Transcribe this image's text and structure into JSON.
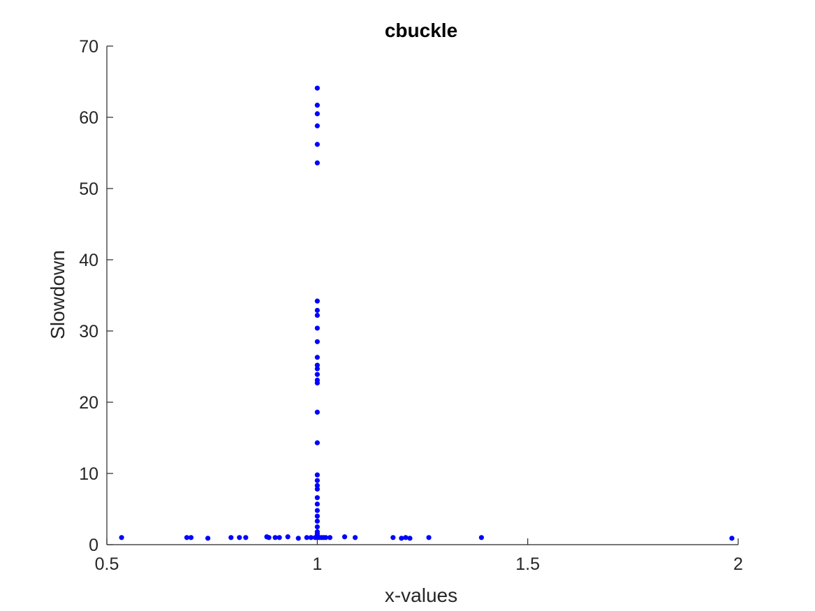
{
  "chart_data": {
    "type": "scatter",
    "title": "cbuckle",
    "xlabel": "x-values",
    "ylabel": "Slowdown",
    "xlim": [
      0.5,
      2
    ],
    "ylim": [
      0,
      70
    ],
    "xticks": [
      0.5,
      1,
      1.5,
      2
    ],
    "xtick_labels": [
      "0.5",
      "1",
      "1.5",
      "2"
    ],
    "yticks": [
      0,
      10,
      20,
      30,
      40,
      50,
      60,
      70
    ],
    "ytick_labels": [
      "0",
      "10",
      "20",
      "30",
      "40",
      "50",
      "60",
      "70"
    ],
    "grid": false,
    "marker_color": "#0000ff",
    "axis_color": "#262626",
    "points": [
      [
        0.535,
        1.0
      ],
      [
        0.69,
        1.0
      ],
      [
        0.7,
        1.0
      ],
      [
        0.74,
        0.9
      ],
      [
        0.795,
        1.0
      ],
      [
        0.815,
        1.0
      ],
      [
        0.83,
        1.0
      ],
      [
        0.88,
        1.1
      ],
      [
        0.885,
        1.0
      ],
      [
        0.9,
        1.0
      ],
      [
        0.91,
        1.0
      ],
      [
        0.93,
        1.1
      ],
      [
        0.955,
        0.9
      ],
      [
        0.975,
        1.0
      ],
      [
        0.985,
        1.0
      ],
      [
        0.995,
        1.0
      ],
      [
        1.0,
        1.0
      ],
      [
        1.0,
        1.2
      ],
      [
        1.0,
        1.5
      ],
      [
        1.0,
        1.8
      ],
      [
        1.0,
        2.5
      ],
      [
        1.0,
        3.3
      ],
      [
        1.0,
        4.0
      ],
      [
        1.0,
        4.8
      ],
      [
        1.0,
        5.7
      ],
      [
        1.0,
        6.6
      ],
      [
        1.0,
        7.8
      ],
      [
        1.0,
        8.3
      ],
      [
        1.0,
        9.0
      ],
      [
        1.0,
        9.8
      ],
      [
        1.0,
        14.3
      ],
      [
        1.0,
        18.6
      ],
      [
        1.0,
        22.7
      ],
      [
        1.0,
        23.1
      ],
      [
        1.0,
        23.9
      ],
      [
        1.0,
        24.7
      ],
      [
        1.0,
        25.2
      ],
      [
        1.0,
        26.3
      ],
      [
        1.0,
        28.5
      ],
      [
        1.0,
        30.4
      ],
      [
        1.0,
        32.2
      ],
      [
        1.0,
        32.9
      ],
      [
        1.0,
        34.2
      ],
      [
        1.0,
        53.6
      ],
      [
        1.0,
        56.2
      ],
      [
        1.0,
        58.8
      ],
      [
        1.0,
        60.5
      ],
      [
        1.0,
        61.7
      ],
      [
        1.0,
        64.1
      ],
      [
        1.005,
        1.0
      ],
      [
        1.01,
        1.0
      ],
      [
        1.015,
        1.0
      ],
      [
        1.02,
        1.0
      ],
      [
        1.03,
        1.0
      ],
      [
        1.065,
        1.1
      ],
      [
        1.09,
        1.0
      ],
      [
        1.18,
        1.0
      ],
      [
        1.2,
        0.9
      ],
      [
        1.21,
        1.0
      ],
      [
        1.22,
        0.9
      ],
      [
        1.265,
        1.0
      ],
      [
        1.39,
        1.0
      ],
      [
        1.985,
        0.9
      ]
    ]
  }
}
